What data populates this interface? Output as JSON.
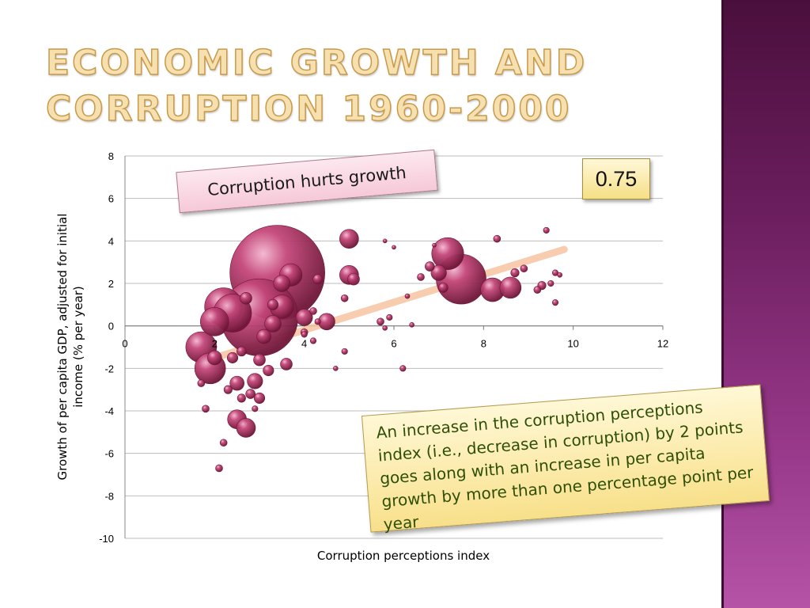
{
  "title": {
    "line1": "ECONOMIC GROWTH AND",
    "line2": "CORRUPTION 1960-2000"
  },
  "callout_top": "Corruption hurts growth",
  "correlation_label": "0.75",
  "note": "An increase in the corruption perceptions index (i.e., decrease in corruption) by 2 points goes along with an increase in per capita growth by more than one percentage point per year",
  "colors": {
    "bubble": "#b03a68",
    "bubble_dark": "#6e1537",
    "trend": "#f7c4a0",
    "sidebar": "#6b1e5e",
    "title": "#f7e0b0"
  },
  "chart_data": {
    "type": "scatter",
    "title": "",
    "xlabel": "Corruption perceptions index",
    "ylabel": "Growth of per capita GDP, adjusted for initial income (% per year)",
    "xlim": [
      0,
      12
    ],
    "ylim": [
      -10,
      8
    ],
    "x_ticks": [
      "0",
      "2",
      "4",
      "6",
      "8",
      "10",
      "12"
    ],
    "y_ticks": [
      "8",
      "6",
      "4",
      "2",
      "0",
      "-2",
      "-4",
      "-6",
      "-8",
      "-10"
    ],
    "grid": "horizontal",
    "bubble_note": "bubble size = relative weight",
    "trendline": {
      "x": [
        1.7,
        9.8
      ],
      "y": [
        -1.7,
        3.6
      ]
    },
    "points": [
      {
        "x": 3.4,
        "y": 2.5,
        "s": 8
      },
      {
        "x": 3.0,
        "y": 0.4,
        "s": 6.5
      },
      {
        "x": 2.2,
        "y": 0.9,
        "s": 3.2
      },
      {
        "x": 1.7,
        "y": -1.0,
        "s": 2.6
      },
      {
        "x": 1.9,
        "y": -2.0,
        "s": 2.6
      },
      {
        "x": 2.0,
        "y": 0.2,
        "s": 2.4
      },
      {
        "x": 2.4,
        "y": 0.6,
        "s": 3.2
      },
      {
        "x": 7.5,
        "y": 2.2,
        "s": 4.2
      },
      {
        "x": 7.2,
        "y": 3.4,
        "s": 2.7
      },
      {
        "x": 8.2,
        "y": 1.7,
        "s": 2.0
      },
      {
        "x": 8.6,
        "y": 1.8,
        "s": 1.8
      },
      {
        "x": 5.0,
        "y": 4.1,
        "s": 1.6
      },
      {
        "x": 5.0,
        "y": 2.4,
        "s": 1.6
      },
      {
        "x": 5.1,
        "y": 2.2,
        "s": 1.0
      },
      {
        "x": 3.7,
        "y": 2.4,
        "s": 1.9
      },
      {
        "x": 3.5,
        "y": 2.0,
        "s": 1.4
      },
      {
        "x": 3.5,
        "y": 0.9,
        "s": 2.0
      },
      {
        "x": 3.3,
        "y": 0.1,
        "s": 1.4
      },
      {
        "x": 3.1,
        "y": -0.5,
        "s": 1.2
      },
      {
        "x": 4.0,
        "y": 0.4,
        "s": 1.4
      },
      {
        "x": 4.5,
        "y": 0.2,
        "s": 1.4
      },
      {
        "x": 2.5,
        "y": -4.4,
        "s": 1.6
      },
      {
        "x": 2.7,
        "y": -4.8,
        "s": 1.6
      },
      {
        "x": 2.9,
        "y": -2.6,
        "s": 1.3
      },
      {
        "x": 2.5,
        "y": -2.7,
        "s": 1.2
      },
      {
        "x": 2.0,
        "y": -1.5,
        "s": 1.2
      },
      {
        "x": 2.4,
        "y": -1.5,
        "s": 0.9
      },
      {
        "x": 2.6,
        "y": -1.2,
        "s": 0.8
      },
      {
        "x": 3.0,
        "y": -1.6,
        "s": 1.0
      },
      {
        "x": 3.2,
        "y": -2.1,
        "s": 0.9
      },
      {
        "x": 3.6,
        "y": -1.8,
        "s": 1.0
      },
      {
        "x": 2.8,
        "y": -3.2,
        "s": 0.8
      },
      {
        "x": 2.6,
        "y": -3.4,
        "s": 0.7
      },
      {
        "x": 3.0,
        "y": -3.4,
        "s": 0.9
      },
      {
        "x": 2.3,
        "y": -3.0,
        "s": 0.7
      },
      {
        "x": 1.8,
        "y": -3.9,
        "s": 0.6
      },
      {
        "x": 2.2,
        "y": -5.5,
        "s": 0.6
      },
      {
        "x": 2.1,
        "y": -6.7,
        "s": 0.6
      },
      {
        "x": 2.9,
        "y": -3.9,
        "s": 0.5
      },
      {
        "x": 1.7,
        "y": -2.7,
        "s": 0.6
      },
      {
        "x": 3.3,
        "y": 1.0,
        "s": 0.9
      },
      {
        "x": 2.7,
        "y": 1.3,
        "s": 1.0
      },
      {
        "x": 4.3,
        "y": 2.2,
        "s": 0.8
      },
      {
        "x": 4.2,
        "y": 0.7,
        "s": 0.6
      },
      {
        "x": 4.0,
        "y": -0.3,
        "s": 0.6
      },
      {
        "x": 4.2,
        "y": -0.7,
        "s": 0.5
      },
      {
        "x": 4.0,
        "y": -0.4,
        "s": 0.5
      },
      {
        "x": 4.3,
        "y": 0.2,
        "s": 0.5
      },
      {
        "x": 4.9,
        "y": -1.2,
        "s": 0.5
      },
      {
        "x": 4.7,
        "y": -2.0,
        "s": 0.4
      },
      {
        "x": 4.9,
        "y": 1.3,
        "s": 0.6
      },
      {
        "x": 5.7,
        "y": 0.2,
        "s": 0.6
      },
      {
        "x": 5.9,
        "y": 0.4,
        "s": 0.5
      },
      {
        "x": 5.8,
        "y": -0.1,
        "s": 0.4
      },
      {
        "x": 5.8,
        "y": 4.0,
        "s": 0.25
      },
      {
        "x": 6.0,
        "y": 3.7,
        "s": 0.3
      },
      {
        "x": 6.3,
        "y": 1.4,
        "s": 0.4
      },
      {
        "x": 6.6,
        "y": 2.3,
        "s": 0.6
      },
      {
        "x": 6.8,
        "y": 2.8,
        "s": 0.8
      },
      {
        "x": 6.2,
        "y": -2.0,
        "s": 0.5
      },
      {
        "x": 6.4,
        "y": 0.05,
        "s": 0.4
      },
      {
        "x": 6.9,
        "y": 3.8,
        "s": 0.3
      },
      {
        "x": 7.0,
        "y": 2.5,
        "s": 1.3
      },
      {
        "x": 7.1,
        "y": 1.8,
        "s": 0.8
      },
      {
        "x": 8.3,
        "y": 4.1,
        "s": 0.6
      },
      {
        "x": 8.7,
        "y": 2.5,
        "s": 0.7
      },
      {
        "x": 8.9,
        "y": 2.7,
        "s": 0.6
      },
      {
        "x": 9.2,
        "y": 1.7,
        "s": 0.6
      },
      {
        "x": 9.3,
        "y": 1.9,
        "s": 0.7
      },
      {
        "x": 9.4,
        "y": 4.5,
        "s": 0.5
      },
      {
        "x": 9.5,
        "y": 2.0,
        "s": 0.5
      },
      {
        "x": 9.6,
        "y": 1.1,
        "s": 0.5
      },
      {
        "x": 9.6,
        "y": 2.5,
        "s": 0.5
      },
      {
        "x": 9.7,
        "y": 2.4,
        "s": 0.4
      }
    ]
  }
}
